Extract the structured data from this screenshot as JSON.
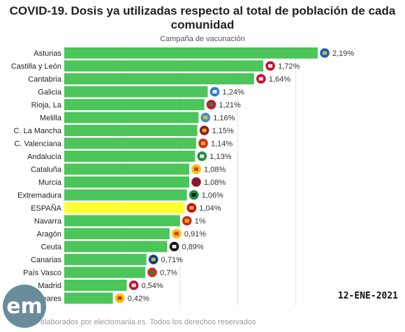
{
  "title": "COVID-19. Dosis ya utilizadas respecto al total de población de cada comunidad",
  "subtitle": "Campaña de vacunación",
  "date_stamp": "12-ENE-2021",
  "footer": "elaborados por electomania.es. Todos los derechos reservados",
  "logo_text": "em",
  "colors": {
    "bar": "#4cc55a",
    "highlight": "#ffff33",
    "grid": "#e3e3e3"
  },
  "chart_data": {
    "type": "bar",
    "orientation": "horizontal",
    "unit": "%",
    "categories": [
      "Asturias",
      "Castilla y León",
      "Cantabria",
      "Galicia",
      "Rioja, La",
      "Melilla",
      "C. La Mancha",
      "C. Valenciana",
      "Andalucía",
      "Cataluña",
      "Murcia",
      "Extremadura",
      "ESPAÑA",
      "Navarra",
      "Aragón",
      "Ceuta",
      "Canarias",
      "País Vasco",
      "Madrid",
      "Baleares"
    ],
    "values": [
      2.19,
      1.72,
      1.64,
      1.24,
      1.21,
      1.16,
      1.15,
      1.14,
      1.13,
      1.08,
      1.08,
      1.06,
      1.04,
      1,
      0.91,
      0.89,
      0.71,
      0.7,
      0.54,
      0.42
    ],
    "value_labels": [
      "2,19%",
      "1,72%",
      "1,64%",
      "1,24%",
      "1,21%",
      "1,16%",
      "1,15%",
      "1,14%",
      "1,13%",
      "1,08%",
      "1,08%",
      "1,06%",
      "1,04%",
      "1%",
      "0,91%",
      "0,89%",
      "0,71%",
      "0,7%",
      "0,54%",
      "0,42%"
    ],
    "highlight": "ESPAÑA",
    "xlim": [
      0,
      2.3
    ],
    "grid": true,
    "flag_colors": [
      [
        "#1a5fd0",
        "#f4c400"
      ],
      [
        "#c8102e",
        "#ffffff"
      ],
      [
        "#c8102e",
        "#ffffff"
      ],
      [
        "#2a7fd0",
        "#ffffff"
      ],
      [
        "#c8102e",
        "#2e8b3a"
      ],
      [
        "#3a8fd0",
        "#f4c400"
      ],
      [
        "#8b1a2a",
        "#f4c400"
      ],
      [
        "#d52b1e",
        "#f4c400"
      ],
      [
        "#1a8c3a",
        "#ffffff"
      ],
      [
        "#f4c400",
        "#d52b1e"
      ],
      [
        "#8b1a2a",
        "#8b1a2a"
      ],
      [
        "#1a8c3a",
        "#111111"
      ],
      [
        "#c60b1e",
        "#ffc400"
      ],
      [
        "#d52b1e",
        "#f4c400"
      ],
      [
        "#f4c400",
        "#d52b1e"
      ],
      [
        "#111111",
        "#ffffff"
      ],
      [
        "#0a3d8f",
        "#f4c400"
      ],
      [
        "#d52b1e",
        "#1a8c3a"
      ],
      [
        "#c8102e",
        "#ffffff"
      ],
      [
        "#f4c400",
        "#d52b1e"
      ]
    ]
  }
}
